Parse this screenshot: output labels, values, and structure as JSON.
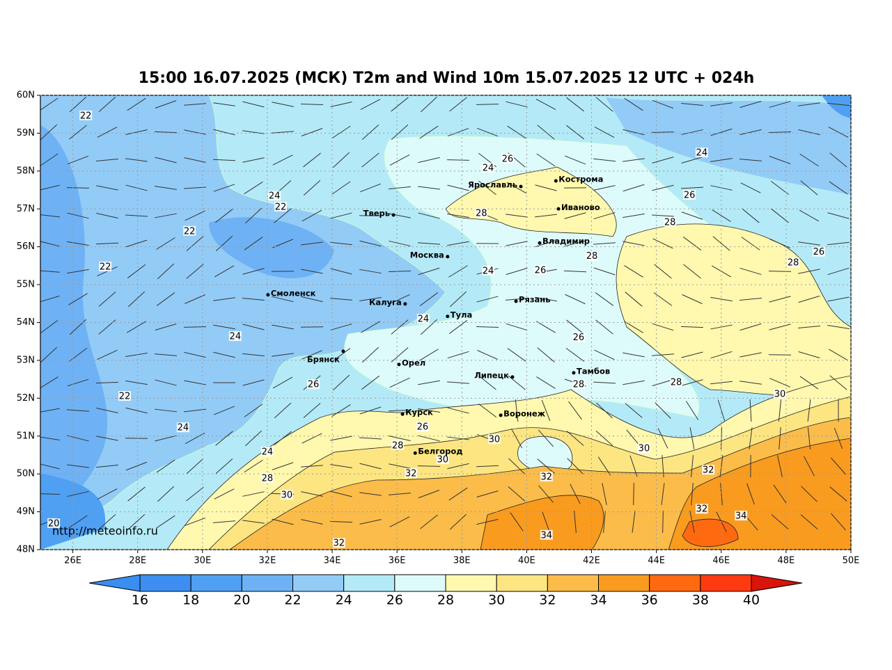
{
  "title": "15:00 16.07.2025 (МСК) T2m and Wind 10m 15.07.2025 12 UTC + 024h",
  "url": "http://meteoinfo.ru",
  "map": {
    "xlim": [
      25,
      50
    ],
    "ylim": [
      48,
      60
    ],
    "xticks": [
      {
        "value": 26,
        "label": "26E"
      },
      {
        "value": 28,
        "label": "28E"
      },
      {
        "value": 30,
        "label": "30E"
      },
      {
        "value": 32,
        "label": "32E"
      },
      {
        "value": 34,
        "label": "34E"
      },
      {
        "value": 36,
        "label": "36E"
      },
      {
        "value": 38,
        "label": "38E"
      },
      {
        "value": 40,
        "label": "40E"
      },
      {
        "value": 42,
        "label": "42E"
      },
      {
        "value": 44,
        "label": "44E"
      },
      {
        "value": 46,
        "label": "46E"
      },
      {
        "value": 48,
        "label": "48E"
      },
      {
        "value": 50,
        "label": "50E"
      }
    ],
    "yticks": [
      {
        "value": 48,
        "label": "48N"
      },
      {
        "value": 49,
        "label": "49N"
      },
      {
        "value": 50,
        "label": "50N"
      },
      {
        "value": 51,
        "label": "51N"
      },
      {
        "value": 52,
        "label": "52N"
      },
      {
        "value": 53,
        "label": "53N"
      },
      {
        "value": 54,
        "label": "54N"
      },
      {
        "value": 55,
        "label": "55N"
      },
      {
        "value": 56,
        "label": "56N"
      },
      {
        "value": 57,
        "label": "57N"
      },
      {
        "value": 58,
        "label": "58N"
      },
      {
        "value": 59,
        "label": "59N"
      },
      {
        "value": 60,
        "label": "60N"
      }
    ],
    "grid": true,
    "cities": [
      {
        "name": "Кострома",
        "lon": 40.9,
        "lat": 57.74
      },
      {
        "name": "Ярославль",
        "lon": 39.82,
        "lat": 57.59
      },
      {
        "name": "Иваново",
        "lon": 40.98,
        "lat": 57.0
      },
      {
        "name": "Тверь",
        "lon": 35.89,
        "lat": 56.84
      },
      {
        "name": "Владимир",
        "lon": 40.4,
        "lat": 56.1
      },
      {
        "name": "Москва",
        "lon": 37.56,
        "lat": 55.74
      },
      {
        "name": "Смоленск",
        "lon": 32.02,
        "lat": 54.73
      },
      {
        "name": "Калуга",
        "lon": 36.25,
        "lat": 54.49
      },
      {
        "name": "Рязань",
        "lon": 39.67,
        "lat": 54.56
      },
      {
        "name": "Тула",
        "lon": 37.56,
        "lat": 54.16
      },
      {
        "name": "Брянск",
        "lon": 34.34,
        "lat": 53.24
      },
      {
        "name": "Орел",
        "lon": 36.06,
        "lat": 52.89
      },
      {
        "name": "Липецк",
        "lon": 39.56,
        "lat": 52.56
      },
      {
        "name": "Тамбов",
        "lon": 41.45,
        "lat": 52.67
      },
      {
        "name": "Курск",
        "lon": 36.17,
        "lat": 51.58
      },
      {
        "name": "Воронеж",
        "lon": 39.2,
        "lat": 51.55
      },
      {
        "name": "Белгород",
        "lon": 36.56,
        "lat": 50.55
      }
    ],
    "contour_labels": [
      {
        "value": 22,
        "lon": 26.4,
        "lat": 59.47
      },
      {
        "value": 24,
        "lon": 38.81,
        "lat": 58.09
      },
      {
        "value": 26,
        "lon": 39.41,
        "lat": 58.33
      },
      {
        "value": 24,
        "lon": 45.4,
        "lat": 58.49
      },
      {
        "value": 24,
        "lon": 32.22,
        "lat": 57.35
      },
      {
        "value": 22,
        "lon": 32.41,
        "lat": 57.06
      },
      {
        "value": 26,
        "lon": 45.02,
        "lat": 57.37
      },
      {
        "value": 28,
        "lon": 38.6,
        "lat": 56.89
      },
      {
        "value": 22,
        "lon": 29.6,
        "lat": 56.42
      },
      {
        "value": 28,
        "lon": 44.42,
        "lat": 56.66
      },
      {
        "value": 28,
        "lon": 42.01,
        "lat": 55.76
      },
      {
        "value": 26,
        "lon": 49.01,
        "lat": 55.87
      },
      {
        "value": 22,
        "lon": 27.0,
        "lat": 55.48
      },
      {
        "value": 24,
        "lon": 38.81,
        "lat": 55.37
      },
      {
        "value": 26,
        "lon": 40.42,
        "lat": 55.39
      },
      {
        "value": 28,
        "lon": 48.22,
        "lat": 55.59
      },
      {
        "value": 24,
        "lon": 36.81,
        "lat": 54.1
      },
      {
        "value": 24,
        "lon": 31.01,
        "lat": 53.64
      },
      {
        "value": 26,
        "lon": 41.6,
        "lat": 53.61
      },
      {
        "value": 26,
        "lon": 33.42,
        "lat": 52.37
      },
      {
        "value": 28,
        "lon": 41.6,
        "lat": 52.37
      },
      {
        "value": 28,
        "lon": 44.61,
        "lat": 52.43
      },
      {
        "value": 30,
        "lon": 47.81,
        "lat": 52.12
      },
      {
        "value": 22,
        "lon": 27.6,
        "lat": 52.06
      },
      {
        "value": 24,
        "lon": 29.4,
        "lat": 51.23
      },
      {
        "value": 26,
        "lon": 36.79,
        "lat": 51.25
      },
      {
        "value": 28,
        "lon": 36.02,
        "lat": 50.76
      },
      {
        "value": 30,
        "lon": 39.0,
        "lat": 50.92
      },
      {
        "value": 30,
        "lon": 43.62,
        "lat": 50.68
      },
      {
        "value": 24,
        "lon": 32.0,
        "lat": 50.59
      },
      {
        "value": 30,
        "lon": 37.41,
        "lat": 50.39
      },
      {
        "value": 32,
        "lon": 36.43,
        "lat": 50.02
      },
      {
        "value": 32,
        "lon": 40.61,
        "lat": 49.93
      },
      {
        "value": 32,
        "lon": 45.6,
        "lat": 50.11
      },
      {
        "value": 28,
        "lon": 32.0,
        "lat": 49.89
      },
      {
        "value": 30,
        "lon": 32.6,
        "lat": 49.45
      },
      {
        "value": 32,
        "lon": 45.4,
        "lat": 49.08
      },
      {
        "value": 34,
        "lon": 46.61,
        "lat": 48.9
      },
      {
        "value": 20,
        "lon": 25.41,
        "lat": 48.7
      },
      {
        "value": 34,
        "lon": 40.61,
        "lat": 48.39
      },
      {
        "value": 32,
        "lon": 34.21,
        "lat": 48.18
      }
    ]
  },
  "colorbar": {
    "ticks": [
      16,
      18,
      20,
      22,
      24,
      26,
      28,
      30,
      32,
      34,
      36,
      38,
      40
    ],
    "colors": [
      "#3a8ef0",
      "#3d8ef0",
      "#4fa0f2",
      "#6eb2f5",
      "#93cbf7",
      "#b4eaf7",
      "#defbfb",
      "#fff8ae",
      "#fde682",
      "#fbbc4a",
      "#f99b1f",
      "#ff6a10",
      "#ff3a10",
      "#d9140a"
    ]
  }
}
